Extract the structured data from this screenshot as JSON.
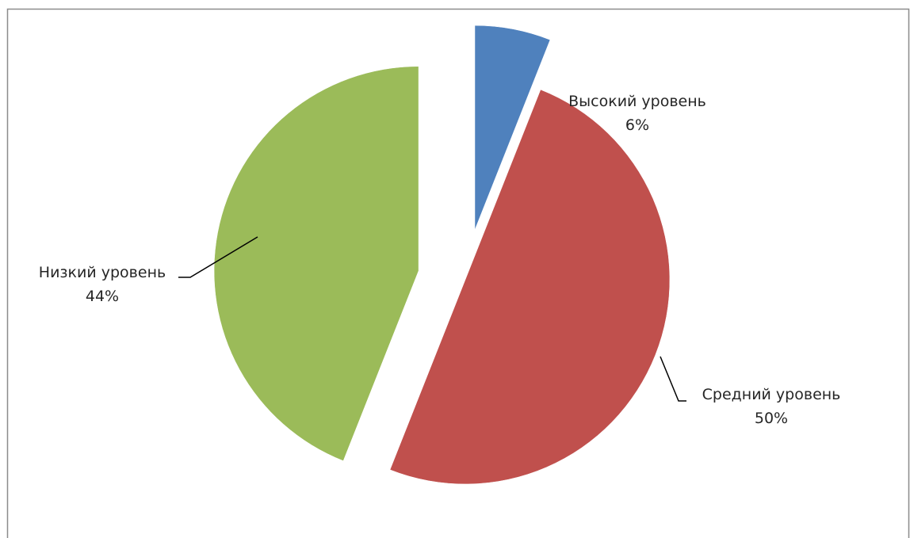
{
  "chart_data": {
    "type": "pie",
    "exploded": true,
    "legend": "none",
    "slices": [
      {
        "name": "Высокий уровень",
        "value": 6,
        "label_value": "6%",
        "color": "#4F81BD"
      },
      {
        "name": "Средний уровень",
        "value": 50,
        "label_value": "50%",
        "color": "#C0504D"
      },
      {
        "name": "Низкий уровень",
        "value": 44,
        "label_value": "44%",
        "color": "#9BBB59"
      }
    ]
  }
}
